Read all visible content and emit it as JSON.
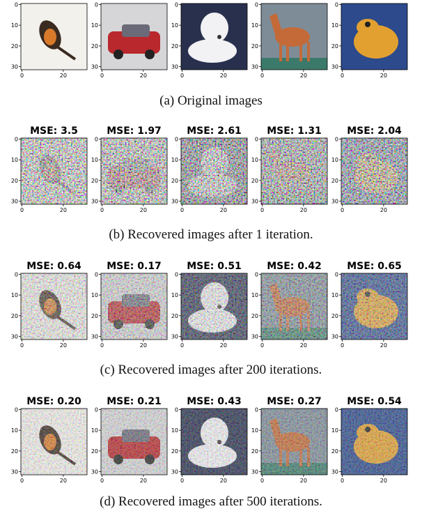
{
  "axes": {
    "yticks": [
      "0",
      "10",
      "20",
      "30"
    ],
    "xticks": [
      "0",
      "20"
    ]
  },
  "panels": [
    {
      "caption": "(a) Original images"
    },
    {
      "caption": "(b) Recovered images after 1 iteration.",
      "titles": [
        "MSE: 3.5",
        "MSE: 1.97",
        "MSE: 2.61",
        "MSE: 1.31",
        "MSE: 2.04"
      ]
    },
    {
      "caption": "(c) Recovered images after 200 iterations.",
      "titles": [
        "MSE: 0.64",
        "MSE: 0.17",
        "MSE: 0.51",
        "MSE: 0.42",
        "MSE: 0.65"
      ]
    },
    {
      "caption": "(d) Recovered images after 500 iterations.",
      "titles": [
        "MSE: 0.20",
        "MSE: 0.21",
        "MSE: 0.43",
        "MSE: 0.27",
        "MSE: 0.54"
      ]
    }
  ]
}
